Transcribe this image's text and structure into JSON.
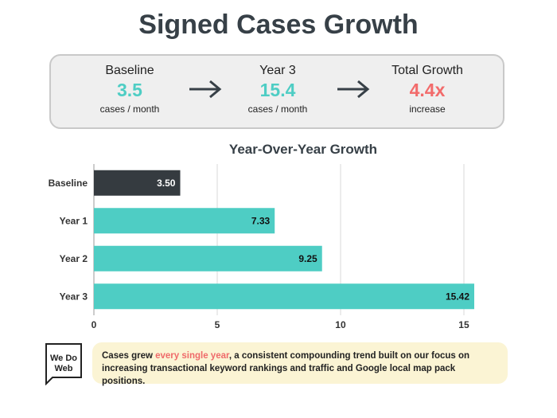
{
  "title": "Signed Cases Growth",
  "summary": {
    "baseline": {
      "label": "Baseline",
      "value": "3.5",
      "sub": "cases / month"
    },
    "year3": {
      "label": "Year 3",
      "value": "15.4",
      "sub": "cases / month"
    },
    "growth": {
      "label": "Total Growth",
      "value": "4.4x",
      "sub": "increase"
    }
  },
  "colors": {
    "accent": "#4ecdc4",
    "baseline_bar": "#353b40",
    "growth": "#f26b6b"
  },
  "chart_data": {
    "type": "bar",
    "orientation": "horizontal",
    "title": "Year-Over-Year Growth",
    "categories": [
      "Baseline",
      "Year 1",
      "Year 2",
      "Year 3"
    ],
    "values": [
      3.5,
      7.33,
      9.25,
      15.42
    ],
    "value_labels": [
      "3.50",
      "7.33",
      "9.25",
      "15.42"
    ],
    "xlim": [
      0,
      15.42
    ],
    "xticks": [
      0,
      5,
      10,
      15
    ],
    "grid": true,
    "xlabel": "",
    "ylabel": ""
  },
  "note": {
    "before": "Cases grew ",
    "highlight": "every single year",
    "after": ", a consistent compounding trend built on our focus on increasing transactional keyword rankings and traffic and Google local map pack positions."
  },
  "logo": {
    "line1": "We Do",
    "line2": "Web"
  }
}
